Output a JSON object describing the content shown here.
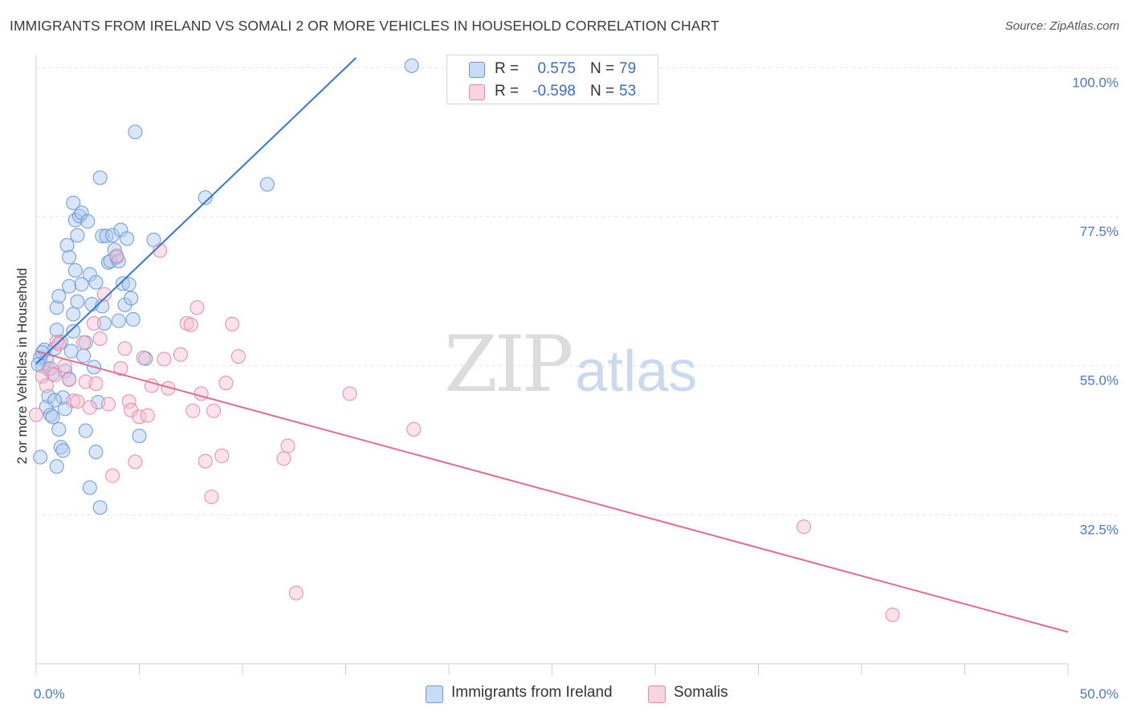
{
  "header": {
    "title": "IMMIGRANTS FROM IRELAND VS SOMALI 2 OR MORE VEHICLES IN HOUSEHOLD CORRELATION CHART",
    "source_label": "Source:",
    "source_value": "ZipAtlas.com"
  },
  "watermark": {
    "zip": "ZIP",
    "atlas": "atlas"
  },
  "legend": {
    "r_label": "R =",
    "n_label": "N =",
    "rows": [
      {
        "r_value": "0.575",
        "n_value": "79"
      },
      {
        "r_value": "-0.598",
        "n_value": "53"
      }
    ]
  },
  "colors": {
    "blue_fill": "#aac8f0",
    "blue_stroke": "#6a9ad8",
    "blue_line": "#3476d2",
    "pink_fill": "#f6bfd2",
    "pink_stroke": "#e48aa8",
    "pink_line": "#e06c96",
    "grid": "#e2e2e2",
    "tick_text": "#4a78c8"
  },
  "chart_data": {
    "type": "scatter",
    "title": "IMMIGRANTS FROM IRELAND VS SOMALI 2 OR MORE VEHICLES IN HOUSEHOLD CORRELATION CHART",
    "xlabel": "",
    "ylabel": "2 or more Vehicles in Household",
    "xlim": [
      0,
      50
    ],
    "ylim": [
      10,
      101.5
    ],
    "x_tick_labels": [
      "0.0%",
      "50.0%"
    ],
    "y_ticks": [
      32.5,
      55.0,
      77.5,
      100.0
    ],
    "y_tick_labels": [
      "32.5%",
      "55.0%",
      "77.5%",
      "100.0%"
    ],
    "grid": true,
    "legend_position": "top-center",
    "series": [
      {
        "name": "Immigrants from Ireland",
        "r": 0.575,
        "n": 79,
        "trend": {
          "x": [
            0,
            15.5
          ],
          "y": [
            55.3,
            101.5
          ]
        },
        "points": [
          [
            0.2,
            56.2
          ],
          [
            0.3,
            55.0
          ],
          [
            0.4,
            57.4
          ],
          [
            0.5,
            56.0
          ],
          [
            0.6,
            54.5
          ],
          [
            0.2,
            41.2
          ],
          [
            0.5,
            48.8
          ],
          [
            0.6,
            50.4
          ],
          [
            0.7,
            47.6
          ],
          [
            0.8,
            47.3
          ],
          [
            0.8,
            53.8
          ],
          [
            0.9,
            57.6
          ],
          [
            1.0,
            60.4
          ],
          [
            1.0,
            63.8
          ],
          [
            1.0,
            39.8
          ],
          [
            1.1,
            45.4
          ],
          [
            1.2,
            58.6
          ],
          [
            1.2,
            42.7
          ],
          [
            1.3,
            42.2
          ],
          [
            1.3,
            50.2
          ],
          [
            1.4,
            54.2
          ],
          [
            1.5,
            73.2
          ],
          [
            1.6,
            71.4
          ],
          [
            1.6,
            53.0
          ],
          [
            1.6,
            67.0
          ],
          [
            1.7,
            57.2
          ],
          [
            1.8,
            79.6
          ],
          [
            1.8,
            62.8
          ],
          [
            1.8,
            60.2
          ],
          [
            1.9,
            69.4
          ],
          [
            1.9,
            77.0
          ],
          [
            2.0,
            64.7
          ],
          [
            2.0,
            74.7
          ],
          [
            2.1,
            77.6
          ],
          [
            2.2,
            78.1
          ],
          [
            2.2,
            67.3
          ],
          [
            2.3,
            56.5
          ],
          [
            2.4,
            58.5
          ],
          [
            2.4,
            45.2
          ],
          [
            2.5,
            76.8
          ],
          [
            2.6,
            68.8
          ],
          [
            2.6,
            36.6
          ],
          [
            2.7,
            64.3
          ],
          [
            2.8,
            54.8
          ],
          [
            2.9,
            67.6
          ],
          [
            3.0,
            49.5
          ],
          [
            3.1,
            33.6
          ],
          [
            3.1,
            83.4
          ],
          [
            3.2,
            74.6
          ],
          [
            3.2,
            64.0
          ],
          [
            3.3,
            61.4
          ],
          [
            3.4,
            74.6
          ],
          [
            3.5,
            70.6
          ],
          [
            3.6,
            70.8
          ],
          [
            3.7,
            74.7
          ],
          [
            3.8,
            72.5
          ],
          [
            3.9,
            71.4
          ],
          [
            4.0,
            70.8
          ],
          [
            4.1,
            75.5
          ],
          [
            4.2,
            67.4
          ],
          [
            4.3,
            64.2
          ],
          [
            4.4,
            74.2
          ],
          [
            4.5,
            67.3
          ],
          [
            4.6,
            65.2
          ],
          [
            4.7,
            62.0
          ],
          [
            4.8,
            90.3
          ],
          [
            5.0,
            44.4
          ],
          [
            5.3,
            56.1
          ],
          [
            5.7,
            74.0
          ],
          [
            8.2,
            80.4
          ],
          [
            11.2,
            82.4
          ],
          [
            18.2,
            100.3
          ],
          [
            0.1,
            55.2
          ],
          [
            0.3,
            57.0
          ],
          [
            0.9,
            49.8
          ],
          [
            1.4,
            48.5
          ],
          [
            2.9,
            42.0
          ],
          [
            4.0,
            61.8
          ],
          [
            1.1,
            65.5
          ]
        ]
      },
      {
        "name": "Somalis",
        "r": -0.598,
        "n": 53,
        "trend": {
          "x": [
            0,
            50
          ],
          "y": [
            57.2,
            14.8
          ]
        },
        "points": [
          [
            0.0,
            47.6
          ],
          [
            0.3,
            53.4
          ],
          [
            0.5,
            52.0
          ],
          [
            0.7,
            54.6
          ],
          [
            0.9,
            53.6
          ],
          [
            1.0,
            58.6
          ],
          [
            1.1,
            58.3
          ],
          [
            1.4,
            55.0
          ],
          [
            1.6,
            52.9
          ],
          [
            1.8,
            49.7
          ],
          [
            2.0,
            49.6
          ],
          [
            2.3,
            58.5
          ],
          [
            2.4,
            52.6
          ],
          [
            2.6,
            48.7
          ],
          [
            2.8,
            61.4
          ],
          [
            2.9,
            52.3
          ],
          [
            3.1,
            59.1
          ],
          [
            3.3,
            65.8
          ],
          [
            3.5,
            49.2
          ],
          [
            3.7,
            38.4
          ],
          [
            3.9,
            71.6
          ],
          [
            4.1,
            54.6
          ],
          [
            4.3,
            57.6
          ],
          [
            4.5,
            49.6
          ],
          [
            4.6,
            48.3
          ],
          [
            4.8,
            40.5
          ],
          [
            5.0,
            47.3
          ],
          [
            5.2,
            56.2
          ],
          [
            5.4,
            47.5
          ],
          [
            5.6,
            52.0
          ],
          [
            6.0,
            72.4
          ],
          [
            6.2,
            56.0
          ],
          [
            6.4,
            51.6
          ],
          [
            7.0,
            56.7
          ],
          [
            7.3,
            61.4
          ],
          [
            7.5,
            61.2
          ],
          [
            7.6,
            48.2
          ],
          [
            7.8,
            63.8
          ],
          [
            8.0,
            50.8
          ],
          [
            8.2,
            40.6
          ],
          [
            8.5,
            35.2
          ],
          [
            8.6,
            48.2
          ],
          [
            9.0,
            41.4
          ],
          [
            9.2,
            52.4
          ],
          [
            9.5,
            61.3
          ],
          [
            9.8,
            56.4
          ],
          [
            12.0,
            41.0
          ],
          [
            12.2,
            42.9
          ],
          [
            12.6,
            20.7
          ],
          [
            15.2,
            50.8
          ],
          [
            18.3,
            45.4
          ],
          [
            37.2,
            30.7
          ],
          [
            41.5,
            17.4
          ]
        ]
      }
    ]
  }
}
